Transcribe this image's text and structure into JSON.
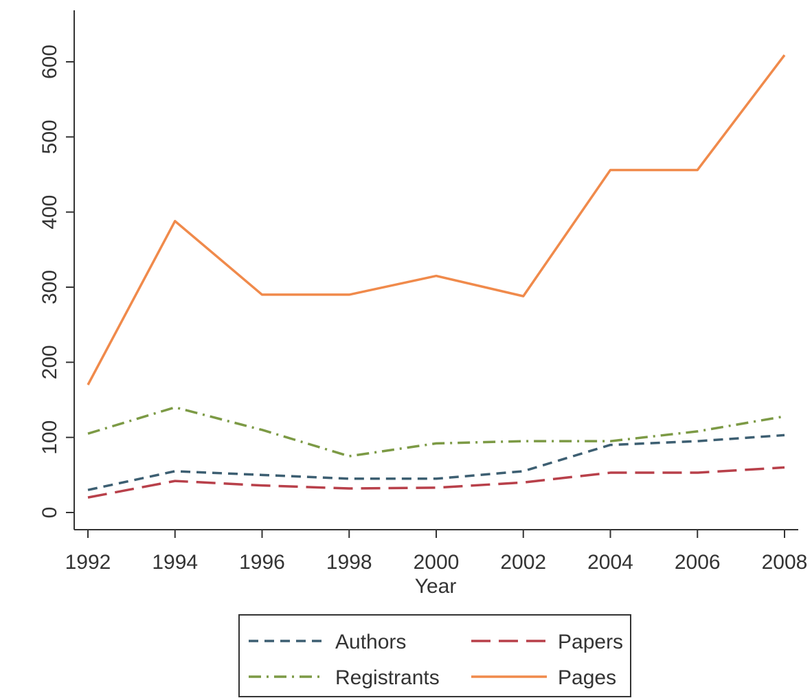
{
  "chart_data": {
    "type": "line",
    "title": "",
    "xlabel": "Year",
    "ylabel": "",
    "x": [
      1992,
      1994,
      1996,
      1998,
      2000,
      2002,
      2004,
      2006,
      2008
    ],
    "x_ticks": [
      "1992",
      "1994",
      "1996",
      "1998",
      "2000",
      "2002",
      "2004",
      "2006",
      "2008"
    ],
    "y_ticks": [
      "0",
      "100",
      "200",
      "300",
      "400",
      "500",
      "600"
    ],
    "xlim": [
      1992,
      2008
    ],
    "ylim": [
      0,
      600
    ],
    "grid": false,
    "legend_position": "bottom",
    "series": [
      {
        "name": "Authors",
        "color": "#3d5f72",
        "style": "short-dash",
        "values": [
          30,
          55,
          50,
          45,
          45,
          55,
          90,
          95,
          103
        ]
      },
      {
        "name": "Papers",
        "color": "#b8404a",
        "style": "long-dash",
        "values": [
          20,
          42,
          36,
          32,
          33,
          40,
          53,
          53,
          60
        ]
      },
      {
        "name": "Registrants",
        "color": "#7c9a45",
        "style": "dash-dot",
        "values": [
          105,
          140,
          110,
          75,
          92,
          95,
          95,
          108,
          128
        ]
      },
      {
        "name": "Pages",
        "color": "#f08a4b",
        "style": "solid",
        "values": [
          170,
          388,
          290,
          290,
          315,
          288,
          456,
          456,
          609
        ]
      }
    ]
  }
}
